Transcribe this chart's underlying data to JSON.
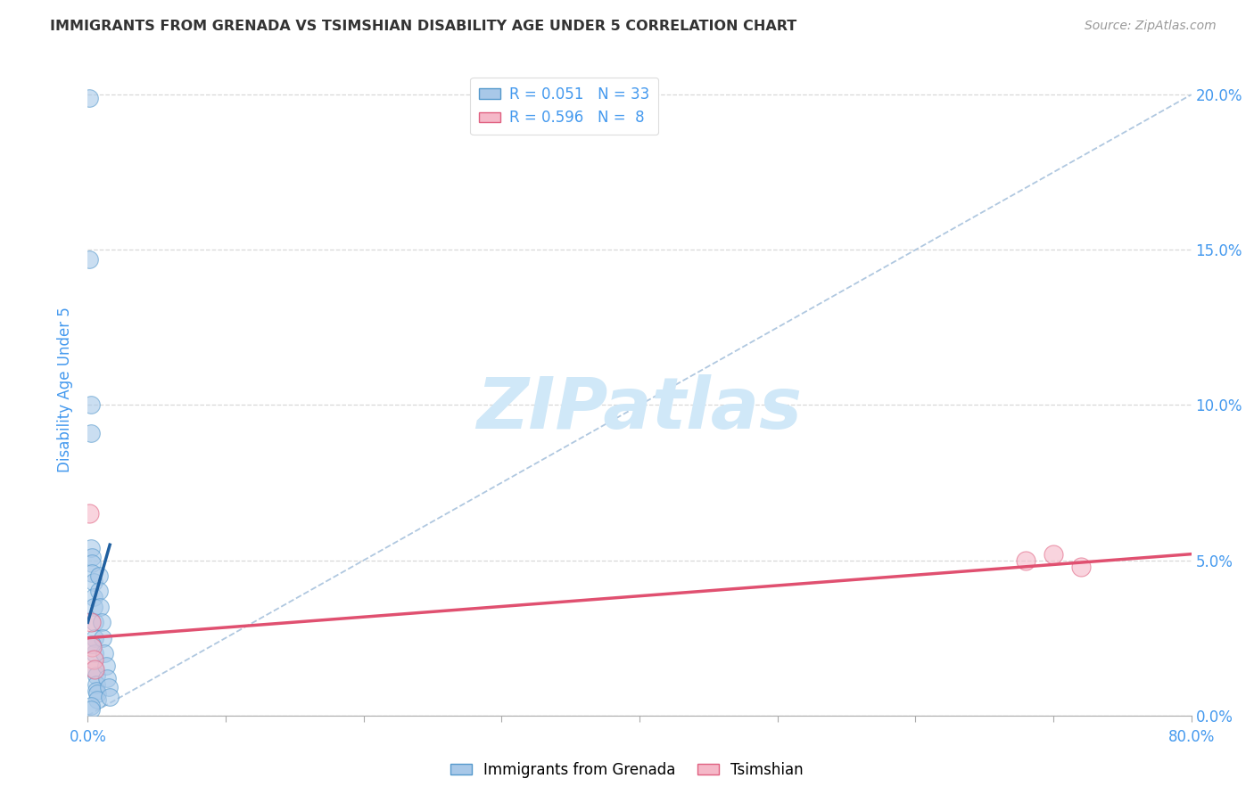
{
  "title": "IMMIGRANTS FROM GRENADA VS TSIMSHIAN DISABILITY AGE UNDER 5 CORRELATION CHART",
  "source": "Source: ZipAtlas.com",
  "ylabel": "Disability Age Under 5",
  "legend_label_blue": "Immigrants from Grenada",
  "legend_label_pink": "Tsimshian",
  "R_blue": 0.051,
  "N_blue": 33,
  "R_pink": 0.596,
  "N_pink": 8,
  "xlim": [
    0.0,
    0.8
  ],
  "ylim": [
    0.0,
    0.21
  ],
  "xticks": [
    0.0,
    0.1,
    0.2,
    0.3,
    0.4,
    0.5,
    0.6,
    0.7,
    0.8
  ],
  "yticks": [
    0.0,
    0.05,
    0.1,
    0.15,
    0.2
  ],
  "blue_color": "#a8c8e8",
  "pink_color": "#f5b8c8",
  "blue_edge_color": "#5599cc",
  "pink_edge_color": "#e06080",
  "blue_line_color": "#2060a0",
  "pink_line_color": "#e05070",
  "diag_line_color": "#b0c8e0",
  "grid_color": "#d8d8d8",
  "background_color": "#ffffff",
  "title_color": "#333333",
  "axis_label_color": "#4499ee",
  "right_axis_color": "#4499ee",
  "watermark_color": "#d0e8f8",
  "blue_scatter_x": [
    0.001,
    0.001,
    0.002,
    0.002,
    0.002,
    0.003,
    0.003,
    0.003,
    0.004,
    0.004,
    0.004,
    0.005,
    0.005,
    0.005,
    0.005,
    0.006,
    0.006,
    0.006,
    0.007,
    0.007,
    0.008,
    0.008,
    0.009,
    0.01,
    0.011,
    0.012,
    0.013,
    0.014,
    0.015,
    0.016,
    0.002,
    0.002,
    0.003
  ],
  "blue_scatter_y": [
    0.199,
    0.147,
    0.1,
    0.091,
    0.054,
    0.051,
    0.049,
    0.046,
    0.043,
    0.038,
    0.035,
    0.03,
    0.025,
    0.02,
    0.015,
    0.013,
    0.01,
    0.008,
    0.007,
    0.005,
    0.045,
    0.04,
    0.035,
    0.03,
    0.025,
    0.02,
    0.016,
    0.012,
    0.009,
    0.006,
    0.003,
    0.002,
    0.023
  ],
  "pink_scatter_x": [
    0.001,
    0.002,
    0.003,
    0.004,
    0.005,
    0.68,
    0.7,
    0.72
  ],
  "pink_scatter_y": [
    0.065,
    0.03,
    0.022,
    0.018,
    0.015,
    0.05,
    0.052,
    0.048
  ],
  "blue_trendline_x": [
    0.0,
    0.016
  ],
  "blue_trendline_y": [
    0.03,
    0.055
  ],
  "pink_trendline_x": [
    0.0,
    0.8
  ],
  "pink_trendline_y": [
    0.025,
    0.052
  ],
  "diag_line_x": [
    0.0,
    0.8
  ],
  "diag_line_y": [
    0.0,
    0.2
  ]
}
